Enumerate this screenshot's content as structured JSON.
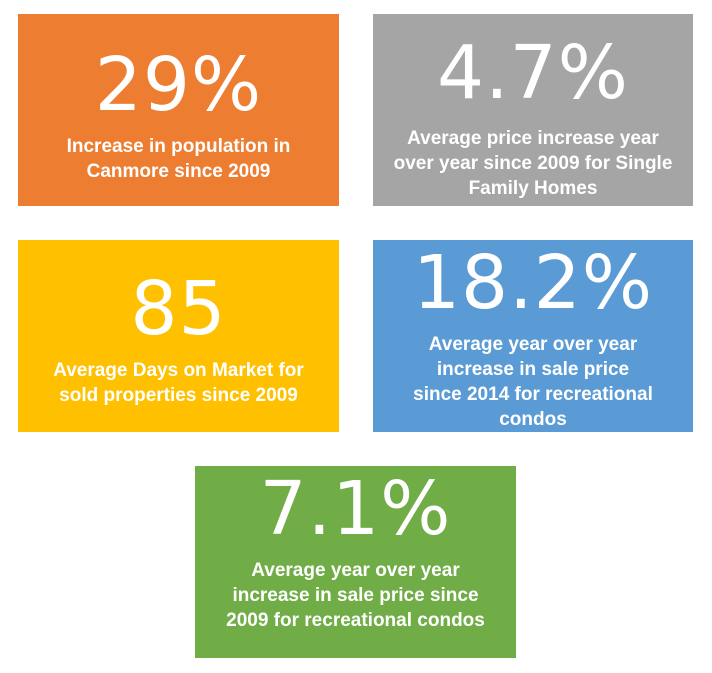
{
  "tiles": [
    {
      "value": "29%",
      "description": "Increase in population in Canmore since 2009",
      "color": "#ED7D31"
    },
    {
      "value": "4.7%",
      "description": "Average price increase year over year since 2009 for Single Family Homes",
      "color": "#A5A5A5"
    },
    {
      "value": "85",
      "description": "Average Days on Market for sold properties since 2009",
      "color": "#FFC000"
    },
    {
      "value": "18.2%",
      "description": "Average year over year increase in sale price since 2014 for recreational condos",
      "color": "#5B9BD5"
    },
    {
      "value": "7.1%",
      "description": "Average year over year increase in sale price since 2009 for recreational condos",
      "color": "#70AD47"
    }
  ]
}
